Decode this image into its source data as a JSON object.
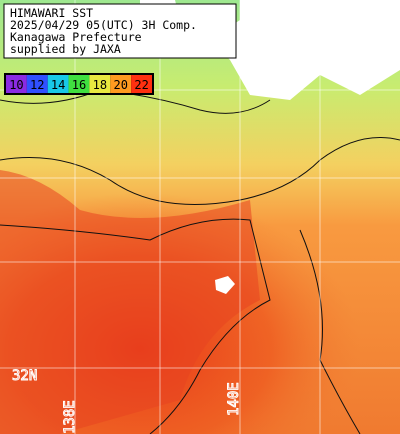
{
  "header": {
    "lines": [
      "HIMAWARI SST",
      "2025/04/29 05(UTC) 3H Comp.",
      "Kanagawa Prefecture",
      "supplied by JAXA"
    ]
  },
  "color_scale": {
    "values": [
      10,
      12,
      14,
      16,
      18,
      20,
      22
    ],
    "colors": [
      "#8a2be2",
      "#3050ff",
      "#18c8e8",
      "#40e040",
      "#e8e840",
      "#ff9a20",
      "#ff3010"
    ]
  },
  "grid_labels": {
    "latitude": "32N",
    "longitudes": [
      "138E",
      "140E"
    ]
  }
}
